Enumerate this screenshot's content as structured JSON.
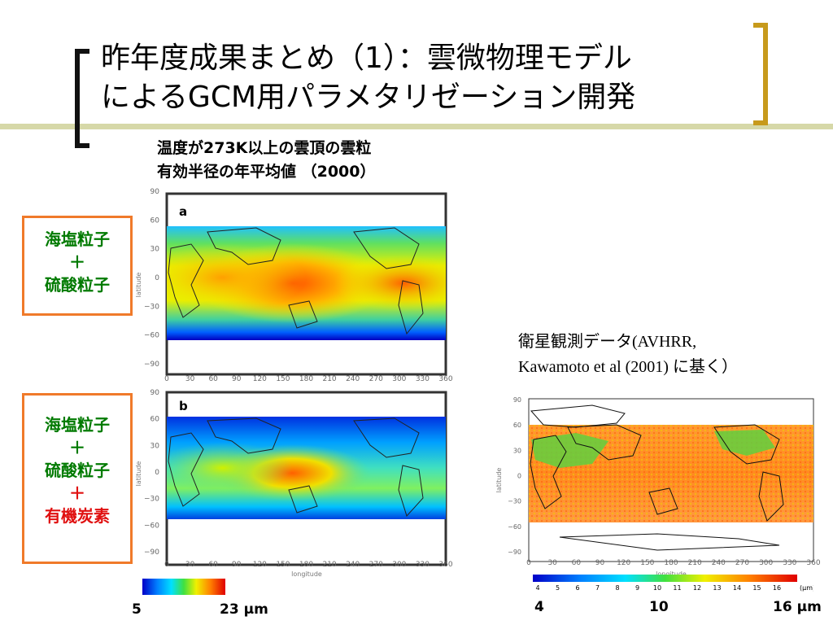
{
  "slide": {
    "title_line1": "昨年度成果まとめ（1）：雲微物理モデル",
    "title_line2": "によるGCM用パラメタリゼーション開発",
    "caption_line1": "温度が273K以上の雲頂の雲粒",
    "caption_line2": "有効半径の年平均値 （2000）",
    "box_a": {
      "line1": "海塩粒子",
      "line2": "＋",
      "line3": "硫酸粒子"
    },
    "box_b": {
      "line1": "海塩粒子",
      "line2": "＋",
      "line3": "硫酸粒子",
      "line4": "＋",
      "line5": "有機炭素"
    },
    "satellite_line1": "衛星観測データ(AVHRR,",
    "satellite_line2": "Kawamoto et al (2001) に基く）"
  },
  "maps": {
    "panel_a_label": "a",
    "panel_b_label": "b",
    "lat_ticks": [
      "90",
      "60",
      "30",
      "0",
      "−30",
      "−60",
      "−90"
    ],
    "lon_ticks": [
      "0",
      "30",
      "60",
      "90",
      "120",
      "150",
      "180",
      "210",
      "240",
      "270",
      "300",
      "330",
      "360"
    ],
    "ylabel": "latitude",
    "xlabel": "longitude"
  },
  "colorbar_model": {
    "min_label": "5",
    "max_label": "23 μm"
  },
  "colorbar_sat": {
    "ticks": [
      "4",
      "5",
      "6",
      "7",
      "8",
      "9",
      "10",
      "11",
      "12",
      "13",
      "14",
      "15",
      "16"
    ],
    "unit": "(μm)",
    "label_left": "4",
    "label_mid": "10",
    "label_right": "16 μm"
  },
  "colors": {
    "accent_orange": "#f07a2a",
    "green_text": "#007a00",
    "red_text": "#e01010",
    "bracket_gold": "#c79a1c",
    "olive_bar": "#d6d8a8"
  }
}
